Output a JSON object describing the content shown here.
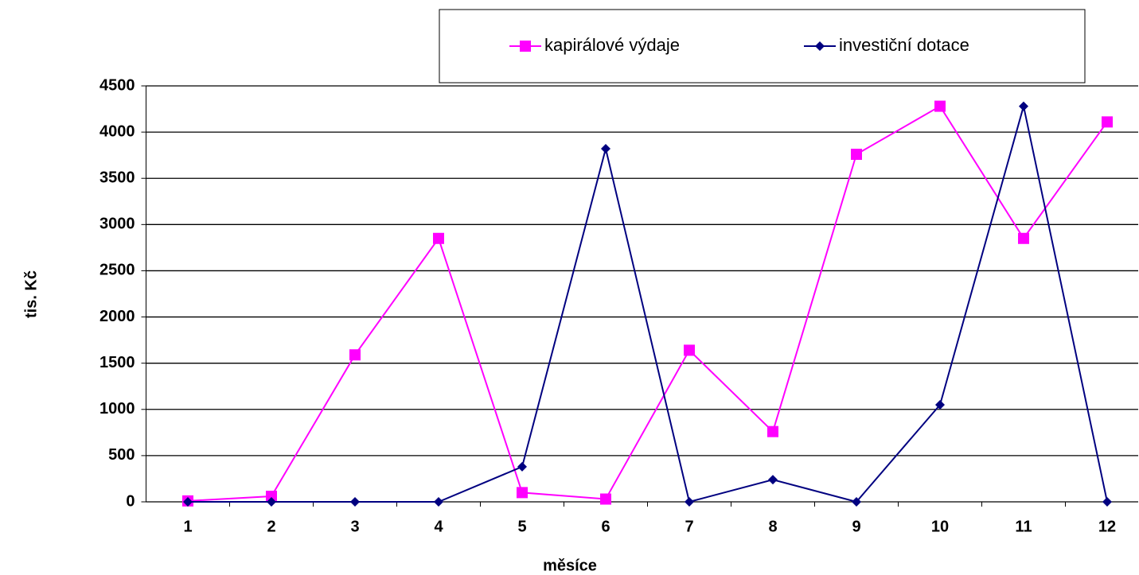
{
  "chart_data": {
    "type": "line",
    "x_label": "měsíce",
    "y_label": "tis. Kč",
    "categories": [
      "1",
      "2",
      "3",
      "4",
      "5",
      "6",
      "7",
      "8",
      "9",
      "10",
      "11",
      "12"
    ],
    "series": [
      {
        "name": "kapirálové výdaje",
        "color": "#ff00ff",
        "marker": "square",
        "values": [
          10,
          60,
          1590,
          2850,
          100,
          30,
          1640,
          760,
          3760,
          4280,
          2850,
          4110
        ]
      },
      {
        "name": "investiční dotace",
        "color": "#000080",
        "marker": "diamond",
        "values": [
          0,
          0,
          0,
          0,
          380,
          3820,
          0,
          240,
          0,
          1050,
          4280,
          0
        ]
      }
    ],
    "ylim": [
      0,
      4500
    ],
    "yticks": [
      0,
      500,
      1000,
      1500,
      2000,
      2500,
      3000,
      3500,
      4000,
      4500
    ],
    "grid": true,
    "legend": "top"
  }
}
